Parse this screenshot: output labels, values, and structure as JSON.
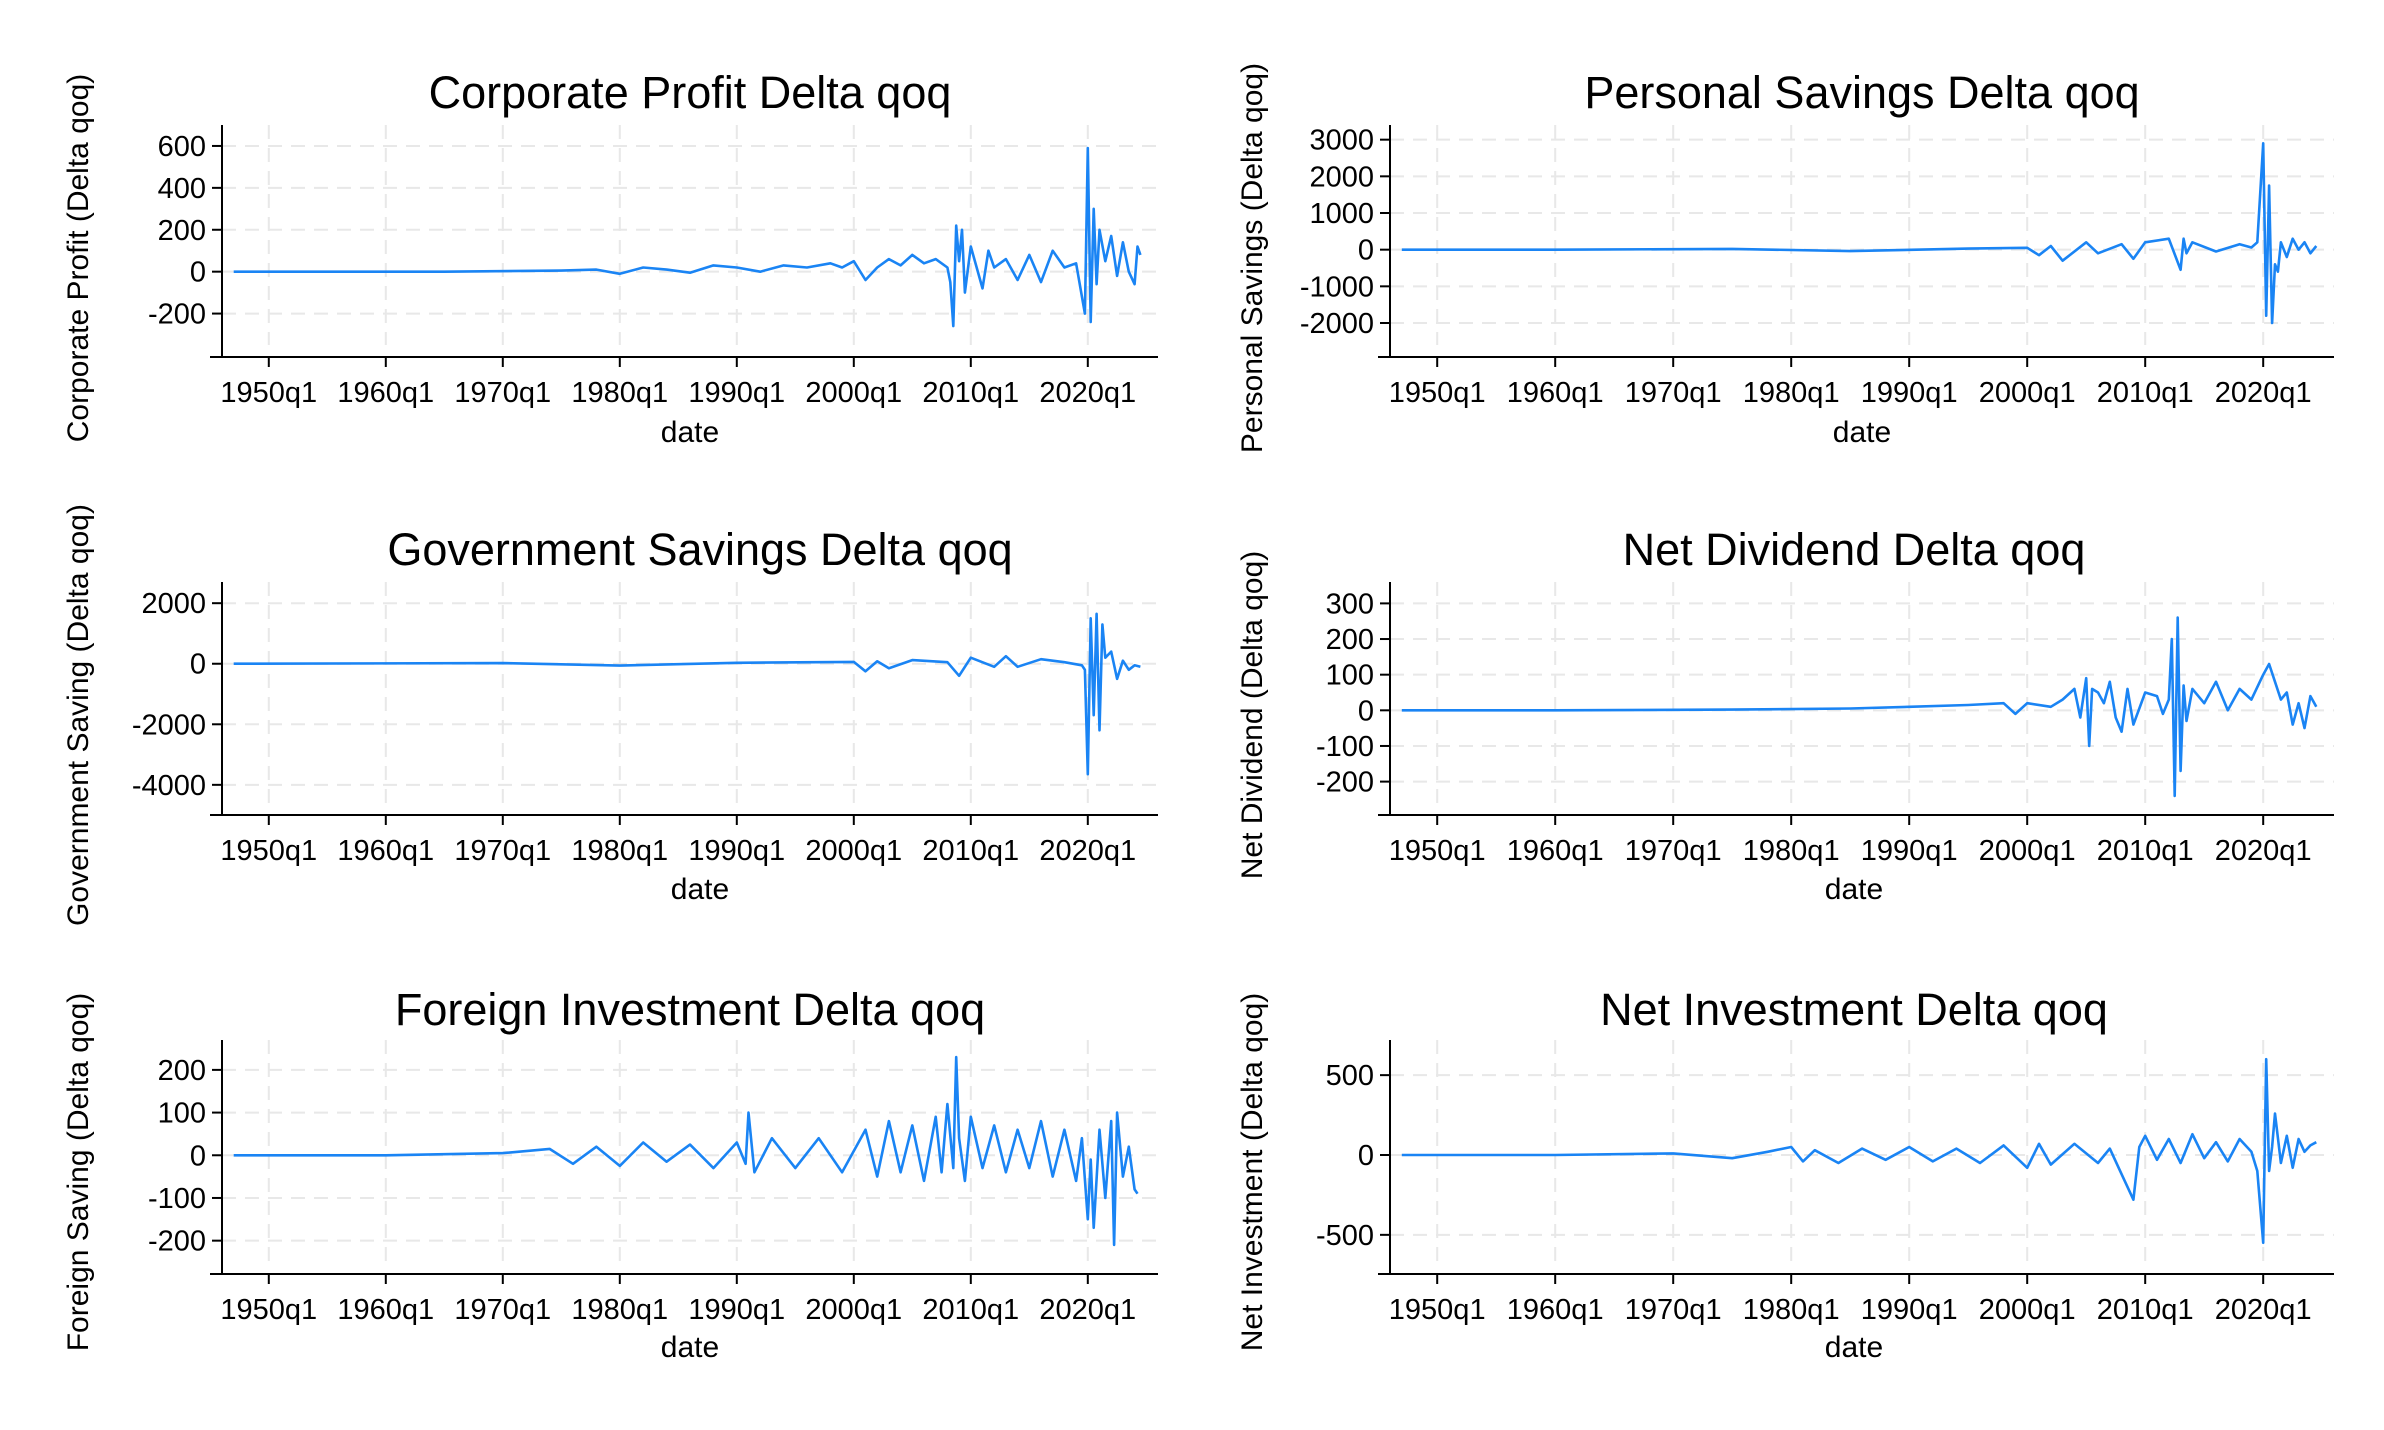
{
  "colors": {
    "series": "#1a84f4",
    "axis": "#000000",
    "grid": "#e8e8e8",
    "background": "#ffffff"
  },
  "x_ticks": [
    "1950q1",
    "1960q1",
    "1970q1",
    "1980q1",
    "1990q1",
    "2000q1",
    "2010q1",
    "2020q1"
  ],
  "chart_data": [
    {
      "type": "line",
      "title": "Corporate Profit Delta qoq",
      "xlabel": "date",
      "ylabel": "Corporate Profit (Delta qoq)",
      "ylim": [
        -350,
        700
      ],
      "yticks": [
        -200,
        0,
        200,
        400,
        600
      ],
      "ytick_labels": [
        "-200",
        "0",
        "200",
        "400",
        "600"
      ],
      "xlim": [
        1946,
        2026
      ],
      "series": [
        {
          "x": [
            1947.0,
            1955.0,
            1965.0,
            1975.0,
            1978.0,
            1980.0,
            1982.0,
            1984.0,
            1986.0,
            1988.0,
            1990.0,
            1992.0,
            1994.0,
            1996.0,
            1998.0,
            1999.0,
            2000.0,
            2001.0,
            2002.0,
            2003.0,
            2004.0,
            2005.0,
            2006.0,
            2007.0,
            2008.0,
            2008.25,
            2008.5,
            2008.75,
            2009.0,
            2009.25,
            2009.5,
            2010.0,
            2011.0,
            2011.5,
            2012.0,
            2013.0,
            2014.0,
            2015.0,
            2016.0,
            2017.0,
            2018.0,
            2019.0,
            2019.75,
            2020.0,
            2020.25,
            2020.5,
            2020.75,
            2021.0,
            2021.5,
            2022.0,
            2022.5,
            2023.0,
            2023.5,
            2024.0,
            2024.25,
            2024.5
          ],
          "y": [
            0,
            0,
            0,
            5,
            10,
            -10,
            20,
            10,
            -5,
            30,
            20,
            0,
            30,
            20,
            40,
            20,
            50,
            -40,
            20,
            60,
            30,
            80,
            40,
            60,
            20,
            -50,
            -260,
            220,
            50,
            200,
            -100,
            120,
            -80,
            100,
            20,
            60,
            -40,
            80,
            -50,
            100,
            20,
            40,
            -200,
            590,
            -240,
            300,
            -60,
            200,
            50,
            170,
            -20,
            140,
            0,
            -60,
            120,
            80
          ]
        }
      ]
    },
    {
      "type": "line",
      "title": "Personal Savings Delta qoq",
      "xlabel": "date",
      "ylabel": "Personal Savings (Delta qoq)",
      "ylim": [
        -2600,
        3400
      ],
      "yticks": [
        -2000,
        -1000,
        0,
        1000,
        2000,
        3000
      ],
      "ytick_labels": [
        "-2000",
        "-1000",
        "0",
        "1000",
        "2000",
        "3000"
      ],
      "xlim": [
        1946,
        2026
      ],
      "series": [
        {
          "x": [
            1947.0,
            1960.0,
            1975.0,
            1985.0,
            1995.0,
            2000.0,
            2001.0,
            2002.0,
            2003.0,
            2005.0,
            2006.0,
            2008.0,
            2009.0,
            2010.0,
            2012.0,
            2013.0,
            2013.25,
            2013.5,
            2014.0,
            2016.0,
            2018.0,
            2019.0,
            2019.5,
            2020.0,
            2020.25,
            2020.5,
            2020.75,
            2021.0,
            2021.25,
            2021.5,
            2022.0,
            2022.5,
            2023.0,
            2023.5,
            2024.0,
            2024.5
          ],
          "y": [
            0,
            0,
            20,
            -40,
            30,
            50,
            -150,
            100,
            -300,
            200,
            -100,
            150,
            -250,
            200,
            300,
            -550,
            300,
            -100,
            200,
            -50,
            150,
            60,
            200,
            2900,
            -1800,
            1750,
            -2000,
            -400,
            -600,
            200,
            -200,
            300,
            0,
            200,
            -100,
            100
          ]
        }
      ]
    },
    {
      "type": "line",
      "title": "Government Savings Delta qoq",
      "xlabel": "date",
      "ylabel": "Government Saving (Delta qoq)",
      "ylim": [
        -4600,
        2700
      ],
      "yticks": [
        -4000,
        -2000,
        0,
        2000
      ],
      "ytick_labels": [
        "-4000",
        "-2000",
        "0",
        "2000"
      ],
      "xlim": [
        1946,
        2026
      ],
      "series": [
        {
          "x": [
            1947.0,
            1970.0,
            1980.0,
            1990.0,
            2000.0,
            2001.0,
            2002.0,
            2003.0,
            2005.0,
            2008.0,
            2009.0,
            2010.0,
            2012.0,
            2013.0,
            2014.0,
            2016.0,
            2018.0,
            2019.5,
            2019.75,
            2020.0,
            2020.25,
            2020.5,
            2020.75,
            2021.0,
            2021.25,
            2021.5,
            2022.0,
            2022.5,
            2023.0,
            2023.5,
            2024.0,
            2024.5
          ],
          "y": [
            0,
            20,
            -60,
            30,
            60,
            -250,
            80,
            -150,
            120,
            50,
            -400,
            200,
            -100,
            250,
            -100,
            150,
            50,
            -50,
            -200,
            -3650,
            1500,
            -1700,
            1650,
            -2200,
            1300,
            200,
            400,
            -500,
            100,
            -200,
            -50,
            -100
          ]
        }
      ]
    },
    {
      "type": "line",
      "title": "Net Dividend Delta qoq",
      "xlabel": "date",
      "ylabel": "Net Dividend (Delta qoq)",
      "ylim": [
        -260,
        360
      ],
      "yticks": [
        -200,
        -100,
        0,
        100,
        200,
        300
      ],
      "ytick_labels": [
        "-200",
        "-100",
        "0",
        "100",
        "200",
        "300"
      ],
      "xlim": [
        1946,
        2026
      ],
      "series": [
        {
          "x": [
            1947.0,
            1960.0,
            1975.0,
            1985.0,
            1990.0,
            1995.0,
            1998.0,
            1999.0,
            2000.0,
            2002.0,
            2003.0,
            2004.0,
            2004.5,
            2005.0,
            2005.25,
            2005.5,
            2006.0,
            2006.5,
            2007.0,
            2007.5,
            2008.0,
            2008.5,
            2009.0,
            2010.0,
            2011.0,
            2011.5,
            2012.0,
            2012.25,
            2012.5,
            2012.75,
            2013.0,
            2013.25,
            2013.5,
            2014.0,
            2015.0,
            2016.0,
            2017.0,
            2018.0,
            2019.0,
            2020.0,
            2020.5,
            2021.0,
            2021.5,
            2022.0,
            2022.5,
            2023.0,
            2023.5,
            2024.0,
            2024.5
          ],
          "y": [
            0,
            0,
            2,
            5,
            10,
            15,
            20,
            -10,
            20,
            10,
            30,
            60,
            -20,
            90,
            -100,
            60,
            50,
            20,
            80,
            -20,
            -60,
            60,
            -40,
            50,
            40,
            -10,
            30,
            200,
            -240,
            260,
            -170,
            70,
            -30,
            60,
            20,
            80,
            0,
            60,
            30,
            100,
            130,
            80,
            30,
            50,
            -40,
            20,
            -50,
            40,
            10
          ]
        }
      ]
    },
    {
      "type": "line",
      "title": "Foreign Investment Delta qoq",
      "xlabel": "date",
      "ylabel": "Foreign Saving (Delta qoq)",
      "ylim": [
        -250,
        270
      ],
      "yticks": [
        -200,
        -100,
        0,
        100,
        200
      ],
      "ytick_labels": [
        "-200",
        "-100",
        "0",
        "100",
        "200"
      ],
      "xlim": [
        1946,
        2026
      ],
      "series": [
        {
          "x": [
            1947.0,
            1960.0,
            1970.0,
            1974.0,
            1976.0,
            1978.0,
            1980.0,
            1982.0,
            1984.0,
            1986.0,
            1988.0,
            1990.0,
            1990.75,
            1991.0,
            1991.5,
            1993.0,
            1995.0,
            1997.0,
            1999.0,
            2001.0,
            2002.0,
            2003.0,
            2004.0,
            2005.0,
            2006.0,
            2007.0,
            2007.5,
            2008.0,
            2008.5,
            2008.75,
            2009.0,
            2009.5,
            2010.0,
            2011.0,
            2012.0,
            2013.0,
            2014.0,
            2015.0,
            2016.0,
            2017.0,
            2018.0,
            2019.0,
            2019.5,
            2020.0,
            2020.25,
            2020.5,
            2021.0,
            2021.5,
            2022.0,
            2022.25,
            2022.5,
            2023.0,
            2023.5,
            2024.0,
            2024.25
          ],
          "y": [
            0,
            0,
            5,
            15,
            -20,
            20,
            -25,
            30,
            -15,
            25,
            -30,
            30,
            -20,
            100,
            -40,
            40,
            -30,
            40,
            -40,
            60,
            -50,
            80,
            -40,
            70,
            -60,
            90,
            -40,
            120,
            -30,
            230,
            40,
            -60,
            90,
            -30,
            70,
            -40,
            60,
            -30,
            80,
            -50,
            60,
            -60,
            40,
            -150,
            -10,
            -170,
            60,
            -100,
            80,
            -210,
            100,
            -50,
            20,
            -80,
            -90
          ]
        }
      ]
    },
    {
      "type": "line",
      "title": "Net Investment Delta qoq",
      "xlabel": "date",
      "ylabel": "Net Investment (Delta qoq)",
      "ylim": [
        -670,
        720
      ],
      "yticks": [
        -500,
        0,
        500
      ],
      "ytick_labels": [
        "-500",
        "0",
        "500"
      ],
      "xlim": [
        1946,
        2026
      ],
      "series": [
        {
          "x": [
            1947.0,
            1960.0,
            1970.0,
            1975.0,
            1978.0,
            1980.0,
            1981.0,
            1982.0,
            1984.0,
            1986.0,
            1988.0,
            1990.0,
            1992.0,
            1994.0,
            1996.0,
            1998.0,
            2000.0,
            2001.0,
            2002.0,
            2004.0,
            2006.0,
            2007.0,
            2008.0,
            2008.5,
            2009.0,
            2009.5,
            2010.0,
            2011.0,
            2012.0,
            2013.0,
            2014.0,
            2015.0,
            2016.0,
            2017.0,
            2018.0,
            2019.0,
            2019.5,
            2020.0,
            2020.25,
            2020.5,
            2020.75,
            2021.0,
            2021.5,
            2022.0,
            2022.5,
            2023.0,
            2023.5,
            2024.0,
            2024.5
          ],
          "y": [
            0,
            0,
            10,
            -20,
            20,
            50,
            -40,
            30,
            -50,
            40,
            -30,
            50,
            -40,
            40,
            -50,
            60,
            -80,
            70,
            -60,
            70,
            -50,
            40,
            -120,
            -200,
            -280,
            50,
            120,
            -30,
            100,
            -50,
            130,
            -20,
            80,
            -40,
            100,
            20,
            -100,
            -550,
            600,
            -100,
            50,
            260,
            -50,
            120,
            -80,
            100,
            20,
            60,
            80
          ]
        }
      ]
    }
  ]
}
